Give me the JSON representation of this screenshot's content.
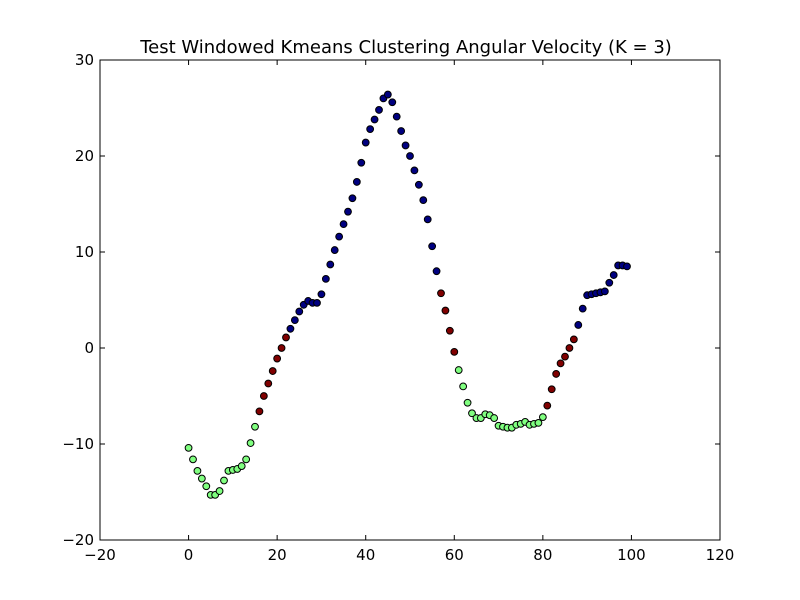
{
  "chart_data": {
    "type": "scatter",
    "title": "Test Windowed Kmeans Clustering Angular Velocity (K = 3)",
    "xlabel": "",
    "ylabel": "",
    "xlim": [
      -20,
      120
    ],
    "ylim": [
      -20,
      30
    ],
    "xticks": [
      -20,
      0,
      20,
      40,
      60,
      80,
      100,
      120
    ],
    "yticks": [
      -20,
      -10,
      0,
      10,
      20,
      30
    ],
    "grid": false,
    "legend": false,
    "cluster_colors": {
      "0": "#000080",
      "1": "#800000",
      "2": "#80ff80"
    },
    "points": [
      [
        0,
        -10.4,
        2
      ],
      [
        1,
        -11.6,
        2
      ],
      [
        2,
        -12.8,
        2
      ],
      [
        3,
        -13.6,
        2
      ],
      [
        4,
        -14.4,
        2
      ],
      [
        5,
        -15.3,
        2
      ],
      [
        6,
        -15.3,
        2
      ],
      [
        7,
        -14.9,
        2
      ],
      [
        8,
        -13.8,
        2
      ],
      [
        9,
        -12.8,
        2
      ],
      [
        10,
        -12.7,
        2
      ],
      [
        11,
        -12.6,
        2
      ],
      [
        12,
        -12.3,
        2
      ],
      [
        13,
        -11.6,
        2
      ],
      [
        14,
        -9.9,
        2
      ],
      [
        15,
        -8.2,
        2
      ],
      [
        16,
        -6.6,
        1
      ],
      [
        17,
        -5.0,
        1
      ],
      [
        18,
        -3.7,
        1
      ],
      [
        19,
        -2.4,
        1
      ],
      [
        20,
        -1.1,
        1
      ],
      [
        21,
        0.0,
        1
      ],
      [
        22,
        1.1,
        1
      ],
      [
        23,
        2.0,
        0
      ],
      [
        24,
        2.9,
        0
      ],
      [
        25,
        3.8,
        0
      ],
      [
        26,
        4.5,
        0
      ],
      [
        27,
        4.9,
        0
      ],
      [
        28,
        4.7,
        0
      ],
      [
        29,
        4.7,
        0
      ],
      [
        30,
        5.6,
        0
      ],
      [
        31,
        7.2,
        0
      ],
      [
        32,
        8.7,
        0
      ],
      [
        33,
        10.2,
        0
      ],
      [
        34,
        11.6,
        0
      ],
      [
        35,
        12.9,
        0
      ],
      [
        36,
        14.2,
        0
      ],
      [
        37,
        15.6,
        0
      ],
      [
        38,
        17.3,
        0
      ],
      [
        39,
        19.3,
        0
      ],
      [
        40,
        21.4,
        0
      ],
      [
        41,
        22.8,
        0
      ],
      [
        42,
        23.8,
        0
      ],
      [
        43,
        24.8,
        0
      ],
      [
        44,
        26.0,
        0
      ],
      [
        45,
        26.4,
        0
      ],
      [
        46,
        25.6,
        0
      ],
      [
        47,
        24.1,
        0
      ],
      [
        48,
        22.6,
        0
      ],
      [
        49,
        21.1,
        0
      ],
      [
        50,
        20.0,
        0
      ],
      [
        51,
        18.5,
        0
      ],
      [
        52,
        17.0,
        0
      ],
      [
        53,
        15.4,
        0
      ],
      [
        54,
        13.4,
        0
      ],
      [
        55,
        10.6,
        0
      ],
      [
        56,
        8.0,
        0
      ],
      [
        57,
        5.7,
        1
      ],
      [
        58,
        3.9,
        1
      ],
      [
        59,
        1.8,
        1
      ],
      [
        60,
        -0.4,
        1
      ],
      [
        61,
        -2.3,
        2
      ],
      [
        62,
        -4.0,
        2
      ],
      [
        63,
        -5.7,
        2
      ],
      [
        64,
        -6.8,
        2
      ],
      [
        65,
        -7.3,
        2
      ],
      [
        66,
        -7.3,
        2
      ],
      [
        67,
        -6.9,
        2
      ],
      [
        68,
        -7.0,
        2
      ],
      [
        69,
        -7.3,
        2
      ],
      [
        70,
        -8.1,
        2
      ],
      [
        71,
        -8.2,
        2
      ],
      [
        72,
        -8.3,
        2
      ],
      [
        73,
        -8.3,
        2
      ],
      [
        74,
        -8.0,
        2
      ],
      [
        75,
        -7.9,
        2
      ],
      [
        76,
        -7.7,
        2
      ],
      [
        77,
        -8.0,
        2
      ],
      [
        78,
        -7.9,
        2
      ],
      [
        79,
        -7.8,
        2
      ],
      [
        80,
        -7.2,
        2
      ],
      [
        81,
        -6.0,
        1
      ],
      [
        82,
        -4.3,
        1
      ],
      [
        83,
        -2.7,
        1
      ],
      [
        84,
        -1.6,
        1
      ],
      [
        85,
        -0.9,
        1
      ],
      [
        86,
        0.0,
        1
      ],
      [
        87,
        0.9,
        1
      ],
      [
        88,
        2.4,
        0
      ],
      [
        89,
        4.1,
        0
      ],
      [
        90,
        5.5,
        0
      ],
      [
        91,
        5.6,
        0
      ],
      [
        92,
        5.7,
        0
      ],
      [
        93,
        5.8,
        0
      ],
      [
        94,
        5.9,
        0
      ],
      [
        95,
        6.8,
        0
      ],
      [
        96,
        7.6,
        0
      ],
      [
        97,
        8.6,
        0
      ],
      [
        98,
        8.6,
        0
      ],
      [
        99,
        8.5,
        0
      ]
    ]
  }
}
